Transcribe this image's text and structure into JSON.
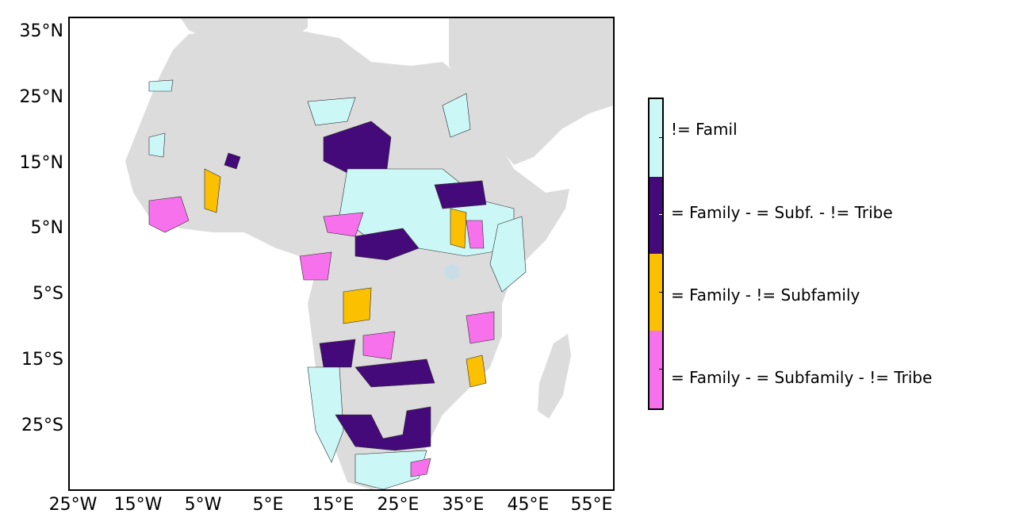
{
  "map": {
    "colors": {
      "land": "#dcdcdc",
      "water": "#ffffff",
      "lake": "#c8dde6",
      "outline": "#2a2a2a"
    },
    "lat_ticks": [
      "35°N",
      "25°N",
      "15°N",
      "5°N",
      "5°S",
      "15°S",
      "25°S"
    ],
    "lon_ticks": [
      "25°W",
      "15°W",
      "5°W",
      "5°E",
      "15°E",
      "25°E",
      "35°E",
      "45°E",
      "55°E"
    ]
  },
  "legend": {
    "items": [
      {
        "label": "!= Famil",
        "color": "#ccf7f7"
      },
      {
        "label": "= Family - = Subf. - != Tribe",
        "color": "#450a7a"
      },
      {
        "label": "= Family - != Subfamily",
        "color": "#fbc000"
      },
      {
        "label": "= Family - = Subfamily - != Tribe",
        "color": "#f871ec"
      }
    ]
  }
}
